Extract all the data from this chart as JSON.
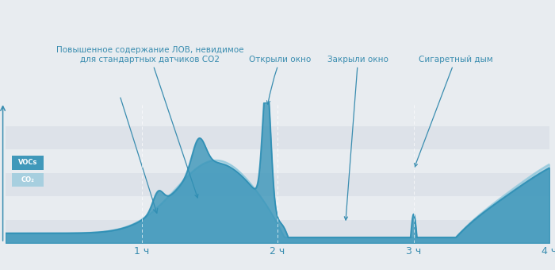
{
  "background_color": "#e8ecf0",
  "band_colors": [
    "#dde2e9",
    "#e8ecf0",
    "#dde2e9",
    "#e8ecf0",
    "#dde2e9",
    "#e8ecf0"
  ],
  "voc_color": "#2e8fb5",
  "voc_fill_color": "#2e8fb5",
  "co2_color": "#90c8dc",
  "co2_fill_color": "#90c8dc",
  "annotation_color": "#3a8db0",
  "legend_voc": "VOCs",
  "legend_co2": "CO₂",
  "ann1_text": "Повышенное содержание ЛОВ, невидимое\nдля стандартных датчиков CO2",
  "ann2_text": "Открыли окно",
  "ann3_text": "Закрыли окно",
  "ann4_text": "Сигаретный дым"
}
